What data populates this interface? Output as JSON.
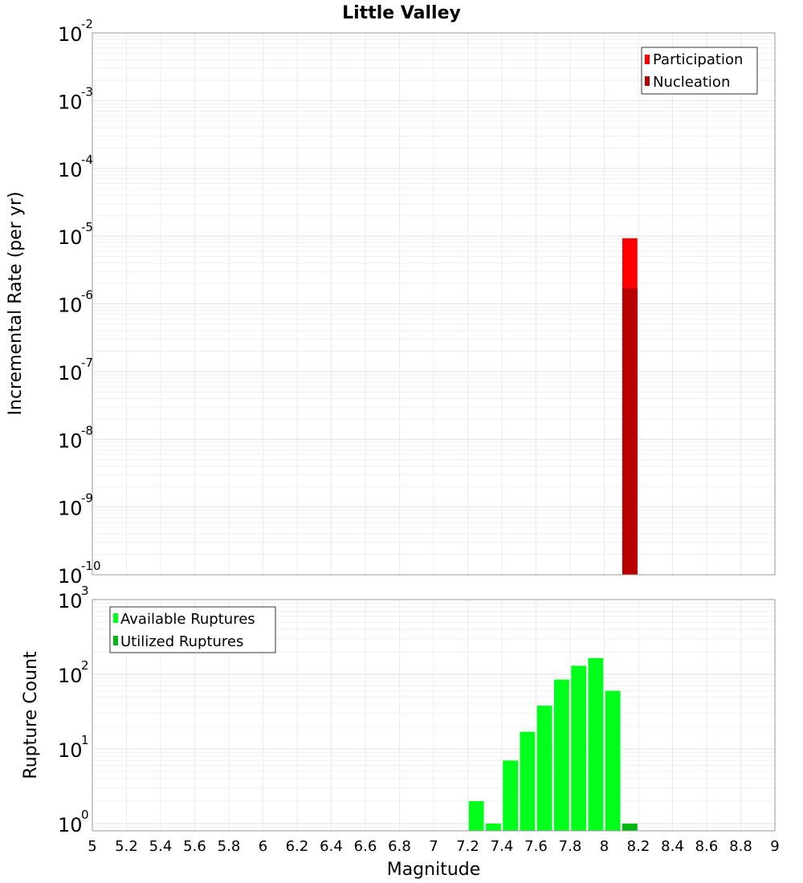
{
  "chart_data": [
    {
      "type": "bar",
      "title": "Little Valley",
      "ylabel": "Incremental Rate (per yr)",
      "xlabel": "",
      "yscale": "log",
      "ylim": [
        1e-10,
        0.01
      ],
      "xlim": [
        5,
        9
      ],
      "ytick_labels": [
        {
          "base": "10",
          "exp": "-2",
          "value": 0.01
        },
        {
          "base": "10",
          "exp": "-3",
          "value": 0.001
        },
        {
          "base": "10",
          "exp": "-4",
          "value": 0.0001
        },
        {
          "base": "10",
          "exp": "-5",
          "value": 1e-05
        },
        {
          "base": "10",
          "exp": "-6",
          "value": 1e-06
        },
        {
          "base": "10",
          "exp": "-7",
          "value": 1e-07
        },
        {
          "base": "10",
          "exp": "-8",
          "value": 1e-08
        },
        {
          "base": "10",
          "exp": "-9",
          "value": 1e-09
        },
        {
          "base": "10",
          "exp": "-10",
          "value": 1e-10
        }
      ],
      "grid": true,
      "legend_position": "top-right",
      "series": [
        {
          "name": "Participation",
          "color": "#ff0000",
          "bars": [
            {
              "x": 8.15,
              "y": 9.3e-06
            }
          ]
        },
        {
          "name": "Nucleation",
          "color": "#b80000",
          "bars": [
            {
              "x": 8.15,
              "y": 1.7e-06
            }
          ]
        }
      ]
    },
    {
      "type": "bar",
      "title": "",
      "ylabel": "Rupture Count",
      "xlabel": "Magnitude",
      "yscale": "log",
      "ylim": [
        0.8,
        1000
      ],
      "xlim": [
        5,
        9
      ],
      "ytick_labels": [
        {
          "base": "10",
          "exp": "3",
          "value": 1000
        },
        {
          "base": "10",
          "exp": "2",
          "value": 100
        },
        {
          "base": "10",
          "exp": "1",
          "value": 10
        },
        {
          "base": "10",
          "exp": "0",
          "value": 1
        }
      ],
      "xticks": [
        "5",
        "5.2",
        "5.4",
        "5.6",
        "5.8",
        "6",
        "6.2",
        "6.4",
        "6.6",
        "6.8",
        "7",
        "7.2",
        "7.4",
        "7.6",
        "7.8",
        "8",
        "8.2",
        "8.4",
        "8.6",
        "8.8",
        "9"
      ],
      "grid": true,
      "legend_position": "top-left",
      "series": [
        {
          "name": "Available Ruptures",
          "color": "#00ff1a",
          "bars": [
            {
              "x": 7.25,
              "y": 2
            },
            {
              "x": 7.35,
              "y": 1
            },
            {
              "x": 7.45,
              "y": 7
            },
            {
              "x": 7.55,
              "y": 17
            },
            {
              "x": 7.65,
              "y": 38
            },
            {
              "x": 7.75,
              "y": 85
            },
            {
              "x": 7.85,
              "y": 130
            },
            {
              "x": 7.95,
              "y": 165
            },
            {
              "x": 8.05,
              "y": 60
            }
          ]
        },
        {
          "name": "Utilized Ruptures",
          "color": "#00b814",
          "bars": [
            {
              "x": 8.15,
              "y": 1
            }
          ]
        }
      ]
    }
  ]
}
